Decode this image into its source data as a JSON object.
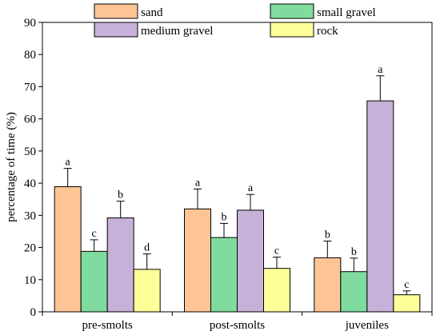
{
  "chart_data": {
    "type": "bar",
    "title": "",
    "xlabel": "",
    "ylabel": "percentage of time (%)",
    "ylim": [
      0,
      90
    ],
    "yticks": [
      0,
      10,
      20,
      30,
      40,
      50,
      60,
      70,
      80,
      90
    ],
    "grid": false,
    "legend_position": "top",
    "categories": [
      "pre-smolts",
      "post-smolts",
      "juveniles"
    ],
    "series": [
      {
        "name": "sand",
        "color": "#FDC596",
        "values": [
          38.9,
          32.0,
          16.8
        ],
        "errors": [
          5.7,
          6.2,
          5.2
        ],
        "sig": [
          "a",
          "a",
          "b"
        ]
      },
      {
        "name": "small gravel",
        "color": "#80DB9F",
        "values": [
          18.8,
          23.1,
          12.5
        ],
        "errors": [
          3.6,
          4.4,
          4.2
        ],
        "sig": [
          "c",
          "b",
          "b"
        ]
      },
      {
        "name": "medium gravel",
        "color": "#C8B1D8",
        "values": [
          29.2,
          31.6,
          65.6
        ],
        "errors": [
          5.2,
          4.9,
          7.8
        ],
        "sig": [
          "b",
          "a",
          "a"
        ]
      },
      {
        "name": "rock",
        "color": "#FFFF99",
        "values": [
          13.2,
          13.5,
          5.3
        ],
        "errors": [
          4.8,
          3.5,
          1.2
        ],
        "sig": [
          "d",
          "c",
          "c"
        ]
      }
    ]
  }
}
